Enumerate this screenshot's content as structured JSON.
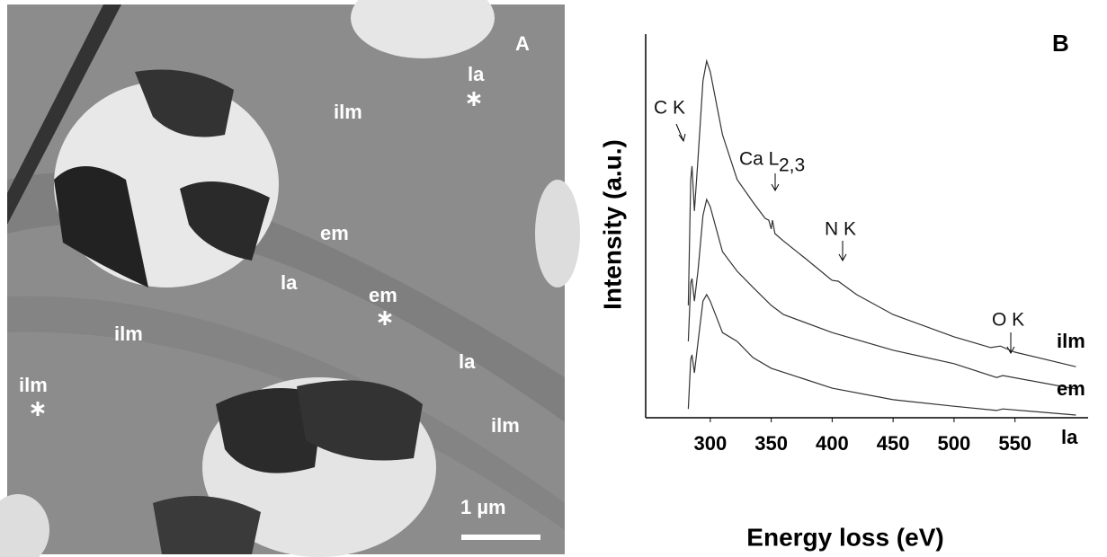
{
  "panel_a": {
    "label": "A",
    "regions": [
      "la",
      "ilm",
      "em",
      "la",
      "em",
      "ilm",
      "la",
      "ilm",
      "ilm"
    ],
    "scale_bar": "1 µm"
  },
  "chart_data": {
    "type": "line",
    "panel_label": "B",
    "xlabel": "Energy loss (eV)",
    "ylabel": "Intensity (a.u.)",
    "xlim": [
      247,
      610
    ],
    "xticks": [
      300,
      350,
      400,
      450,
      500,
      550
    ],
    "ylim": [
      0,
      100
    ],
    "annotations": [
      {
        "text": "C K"
      },
      {
        "text": "Ca L",
        "subscript": "2,3"
      },
      {
        "text": "N K"
      },
      {
        "text": "O K"
      }
    ],
    "series": [
      {
        "name": "ilm",
        "color": "#333333",
        "x": [
          282,
          284,
          285,
          287,
          290,
          294,
          297,
          300,
          305,
          310,
          322,
          335,
          345,
          348,
          350,
          351,
          353,
          360,
          380,
          398,
          400,
          405,
          420,
          450,
          500,
          530,
          538,
          550,
          600
        ],
        "values": [
          29.3,
          62.1,
          65.6,
          53.9,
          67.9,
          87.8,
          93.0,
          90.2,
          82.0,
          73.8,
          62.1,
          56.2,
          52.0,
          51.5,
          49.2,
          51.5,
          48.0,
          46.1,
          41.0,
          36.3,
          35.8,
          35.6,
          32.1,
          26.9,
          21.1,
          18.3,
          18.7,
          17.1,
          13.3
        ]
      },
      {
        "name": "em",
        "color": "#333333",
        "x": [
          282,
          284,
          285,
          287,
          290,
          294,
          297,
          300,
          310,
          322,
          335,
          350,
          360,
          400,
          450,
          500,
          535,
          540,
          600
        ],
        "values": [
          19.9,
          35.1,
          36.3,
          30.4,
          38.6,
          52.7,
          56.9,
          55.0,
          43.3,
          38.2,
          34.0,
          29.3,
          26.9,
          22.2,
          17.6,
          14.1,
          10.5,
          11.0,
          7.5
        ]
      },
      {
        "name": "la",
        "color": "#333333",
        "x": [
          282,
          284,
          285,
          287,
          290,
          294,
          297,
          300,
          310,
          322,
          335,
          350,
          400,
          450,
          500,
          535,
          540,
          600
        ],
        "values": [
          2.3,
          15.2,
          16.4,
          11.7,
          19.9,
          30.4,
          32.1,
          30.4,
          22.2,
          19.9,
          15.7,
          12.9,
          7.7,
          4.7,
          3.0,
          1.9,
          2.3,
          0.7
        ]
      }
    ]
  }
}
